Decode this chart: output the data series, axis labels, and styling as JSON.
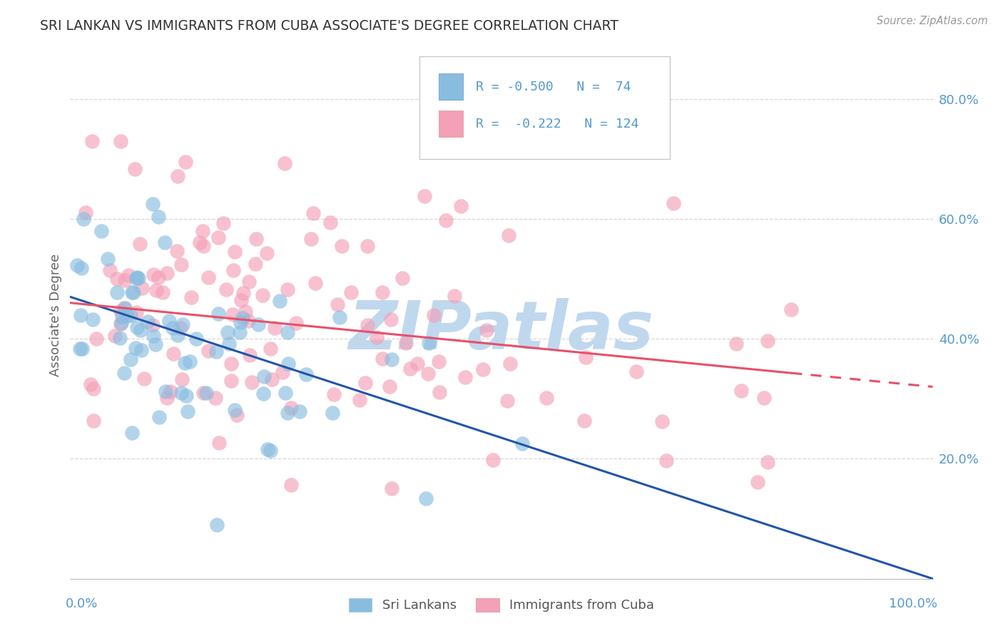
{
  "title": "SRI LANKAN VS IMMIGRANTS FROM CUBA ASSOCIATE'S DEGREE CORRELATION CHART",
  "source": "Source: ZipAtlas.com",
  "ylabel": "Associate's Degree",
  "ytick_labels": [
    "20.0%",
    "40.0%",
    "60.0%",
    "80.0%"
  ],
  "ytick_values": [
    0.2,
    0.4,
    0.6,
    0.8
  ],
  "xlim": [
    0.0,
    1.0
  ],
  "ylim": [
    0.0,
    0.88
  ],
  "sri_lankan_color": "#89bde0",
  "cuba_color": "#f4a0b8",
  "sri_lankan_line_color": "#2255aa",
  "cuba_line_color": "#e8506a",
  "watermark": "ZIPatlas",
  "watermark_color": "#c0d8ee",
  "sri_lankan_R": -0.5,
  "sri_lankan_N": 74,
  "cuba_R": -0.222,
  "cuba_N": 124,
  "title_color": "#333333",
  "axis_label_color": "#5599cc",
  "background_color": "#ffffff",
  "grid_color": "#cccccc",
  "sl_line_y0": 0.47,
  "sl_line_y1": 0.0,
  "cuba_line_y0": 0.46,
  "cuba_line_y1": 0.32
}
